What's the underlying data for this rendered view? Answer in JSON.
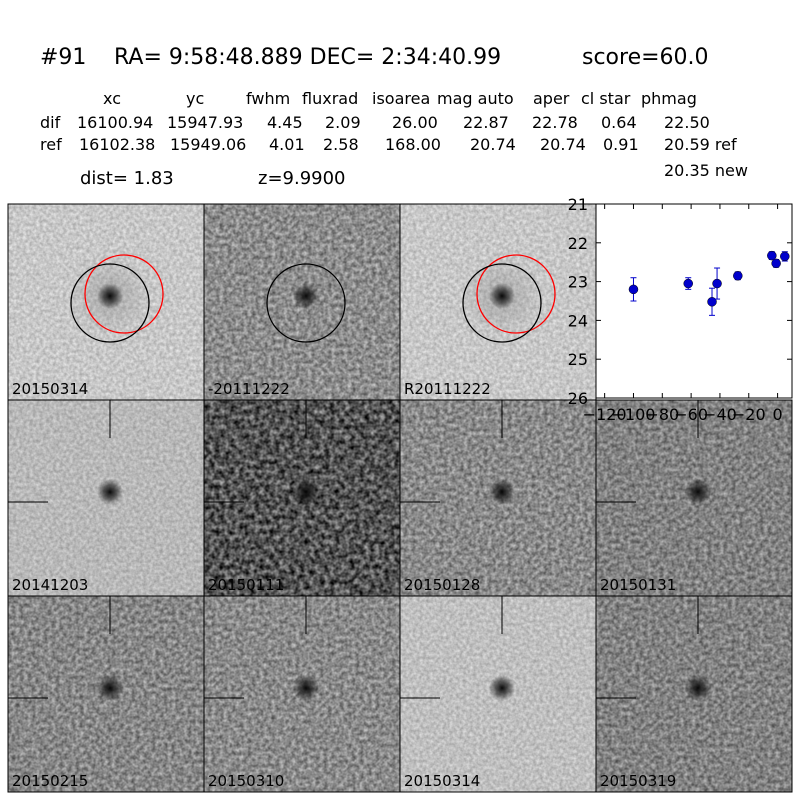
{
  "header": {
    "id": "#91",
    "coords": "RA= 9:58:48.889 DEC= 2:34:40.99",
    "score": "score=60.0"
  },
  "table": {
    "columns": [
      "xc",
      "yc",
      "fwhm",
      "fluxrad",
      "isoarea",
      "mag auto",
      "aper",
      "cl star",
      "phmag"
    ],
    "rows": [
      [
        "dif",
        "16100.94",
        "15947.93",
        "4.45",
        "2.09",
        "26.00",
        "22.87",
        "22.78",
        "0.64",
        "22.50"
      ],
      [
        "ref",
        "16102.38",
        "15949.06",
        "4.01",
        "2.58",
        "168.00",
        "20.74",
        "20.74",
        "0.91",
        "20.59 ref"
      ]
    ],
    "extra": "20.35 new"
  },
  "info": {
    "dist": "dist=  1.83",
    "z": "z=9.9900"
  },
  "panels": [
    {
      "label": "20150314"
    },
    {
      "label": "-20111222"
    },
    {
      "label": "R20111222"
    },
    {
      "label": "20141203"
    },
    {
      "label": "20150111"
    },
    {
      "label": "20150128"
    },
    {
      "label": "20150131"
    },
    {
      "label": "20150215"
    },
    {
      "label": "20150310"
    },
    {
      "label": "20150314",
      "label_color": "#ff0000"
    },
    {
      "label": "20150319"
    }
  ],
  "chart_data": {
    "type": "scatter",
    "series": [
      {
        "color": "#0000cc",
        "x": [
          -100,
          -62,
          -45.5,
          -42,
          -27.6,
          -4,
          -1,
          5
        ],
        "values": [
          23.2,
          23.05,
          23.52,
          23.05,
          22.85,
          22.33,
          22.53,
          22.35
        ],
        "errors": [
          0.3,
          0.15,
          0.35,
          0.4,
          0.1,
          0.1,
          0.1,
          0.12
        ]
      }
    ],
    "xlim": [
      -126,
      10
    ],
    "xticks": [
      {
        "value": -120,
        "label": "−120"
      },
      {
        "value": -100,
        "label": "−100"
      },
      {
        "value": -80,
        "label": "−80"
      },
      {
        "value": -60,
        "label": "−60"
      },
      {
        "value": -40,
        "label": "−40"
      },
      {
        "value": -20,
        "label": "−20"
      },
      0
    ],
    "ylim": [
      26,
      21
    ],
    "yticks": [
      21,
      22,
      23,
      24,
      25,
      26
    ]
  }
}
